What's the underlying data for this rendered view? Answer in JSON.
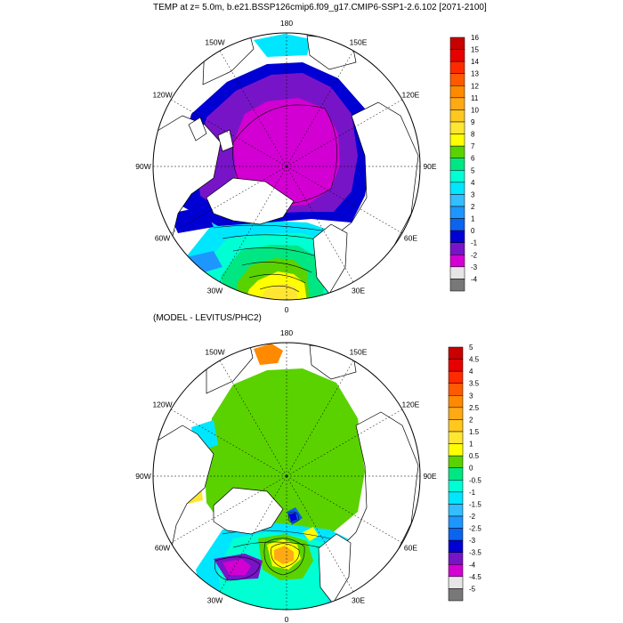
{
  "top_panel": {
    "title": "TEMP at z=   5.0m, b.e21.BSSP126cmip6.f09_g17.CMIP6-SSP1-2.6.102 [2071-2100]",
    "lon_labels": [
      "180",
      "150E",
      "120E",
      "90E",
      "60E",
      "30E",
      "0",
      "30W",
      "60W",
      "90W",
      "120W",
      "150W"
    ],
    "colorbar": {
      "labels": [
        "16",
        "15",
        "14",
        "13",
        "12",
        "11",
        "10",
        "9",
        "8",
        "7",
        "6",
        "5",
        "4",
        "3",
        "2",
        "1",
        "0",
        "-1",
        "-2",
        "-3",
        "-4"
      ],
      "colors": [
        "#c80000",
        "#e60000",
        "#ff2a00",
        "#ff5a00",
        "#ff8a00",
        "#ffaa14",
        "#ffc81e",
        "#ffe632",
        "#ffff00",
        "#5ad200",
        "#00e682",
        "#00ffd2",
        "#00e6ff",
        "#32beff",
        "#1e96ff",
        "#0a64f0",
        "#0000d2",
        "#7814c8",
        "#d200d2",
        "#e6e6e6",
        "#787878"
      ]
    }
  },
  "bottom_panel": {
    "title": "(MODEL - LEVITUS/PHC2)",
    "lon_labels": [
      "180",
      "150E",
      "120E",
      "90E",
      "60E",
      "30E",
      "0",
      "30W",
      "60W",
      "90W",
      "120W",
      "150W"
    ],
    "colorbar": {
      "labels": [
        "5",
        "4.5",
        "4",
        "3.5",
        "3",
        "2.5",
        "2",
        "1.5",
        "1",
        "0.5",
        "0",
        "-0.5",
        "-1",
        "-1.5",
        "-2",
        "-2.5",
        "-3",
        "-3.5",
        "-4",
        "-4.5",
        "-5"
      ],
      "colors": [
        "#c80000",
        "#e60000",
        "#ff2a00",
        "#ff5a00",
        "#ff8a00",
        "#ffaa14",
        "#ffc81e",
        "#ffe632",
        "#ffff00",
        "#5ad200",
        "#00e682",
        "#00ffd2",
        "#00e6ff",
        "#32beff",
        "#1e96ff",
        "#0a64f0",
        "#0000d2",
        "#7814c8",
        "#d200d2",
        "#e6e6e6",
        "#787878"
      ]
    }
  }
}
